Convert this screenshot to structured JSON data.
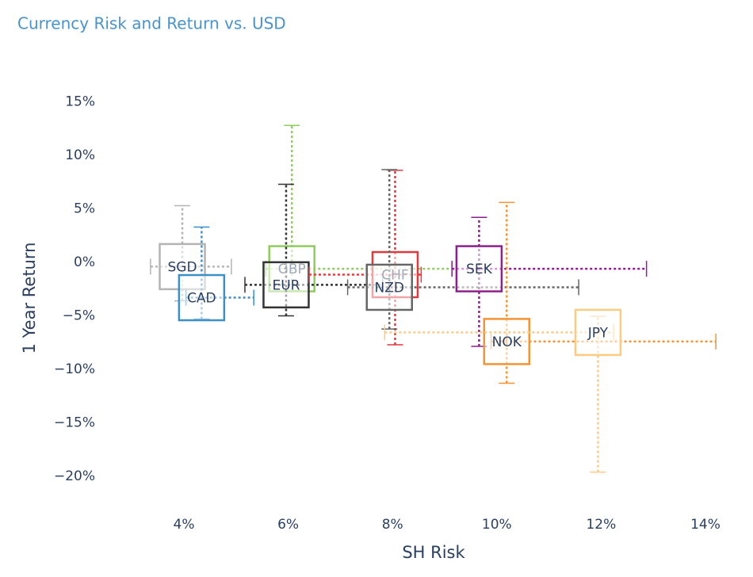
{
  "chart_data": {
    "type": "scatter",
    "title": "Currency Risk and Return vs. USD",
    "xlabel": "SH Risk",
    "ylabel": "1 Year Return",
    "xlim": [
      2.5,
      14.4
    ],
    "ylim": [
      -23,
      18
    ],
    "xticks": [
      {
        "value": 4,
        "label": "4%"
      },
      {
        "value": 6,
        "label": "6%"
      },
      {
        "value": 8,
        "label": "8%"
      },
      {
        "value": 10,
        "label": "10%"
      },
      {
        "value": 12,
        "label": "12%"
      },
      {
        "value": 14,
        "label": "14%"
      }
    ],
    "yticks": [
      {
        "value": 15,
        "label": "15%"
      },
      {
        "value": 10,
        "label": "10%"
      },
      {
        "value": 5,
        "label": "5%"
      },
      {
        "value": 0,
        "label": "0%"
      },
      {
        "value": -5,
        "label": "−5%"
      },
      {
        "value": -10,
        "label": "−10%"
      },
      {
        "value": -15,
        "label": "−15%"
      },
      {
        "value": -20,
        "label": "−20%"
      }
    ],
    "grid": false,
    "series": [
      {
        "name": "SGD",
        "color": "#b4b4b4",
        "x": 3.97,
        "y": -0.4,
        "error_x": [
          0.61,
          0.94
        ],
        "error_y": [
          3.2,
          5.7
        ]
      },
      {
        "name": "CAD",
        "color": "#3d8fc9",
        "x": 4.34,
        "y": -3.3,
        "error_x": [
          0.3,
          1.0
        ],
        "error_y": [
          2.0,
          6.6
        ]
      },
      {
        "name": "GBP",
        "color": "#8fcc5c",
        "x": 6.07,
        "y": -0.6,
        "error_x": [
          0.5,
          3.07
        ],
        "error_y": [
          2.0,
          13.4
        ]
      },
      {
        "name": "EUR",
        "color": "#333333",
        "x": 5.96,
        "y": -2.1,
        "error_x": [
          0.79,
          1.85
        ],
        "error_y": [
          2.9,
          9.4
        ]
      },
      {
        "name": "CHF",
        "color": "#e0393e",
        "x": 8.05,
        "y": -1.15,
        "error_x": [
          1.65,
          0.5
        ],
        "error_y": [
          6.55,
          9.75
        ]
      },
      {
        "name": "NZD",
        "color": "#666666",
        "x": 7.94,
        "y": -2.33,
        "error_x": [
          0.8,
          3.63
        ],
        "error_y": [
          3.9,
          11.0
        ]
      },
      {
        "name": "SEK",
        "color": "#8e1f8e",
        "x": 9.66,
        "y": -0.6,
        "error_x": [
          0.52,
          3.21
        ],
        "error_y": [
          7.25,
          4.8
        ]
      },
      {
        "name": "NOK",
        "color": "#f39334",
        "x": 10.19,
        "y": -7.4,
        "error_x": [
          0.3,
          4.01
        ],
        "error_y": [
          3.9,
          13.0
        ]
      },
      {
        "name": "JPY",
        "color": "#fdca80",
        "x": 11.94,
        "y": -6.55,
        "error_x": [
          4.09,
          0.3
        ],
        "error_y": [
          13.05,
          1.5
        ]
      }
    ]
  }
}
